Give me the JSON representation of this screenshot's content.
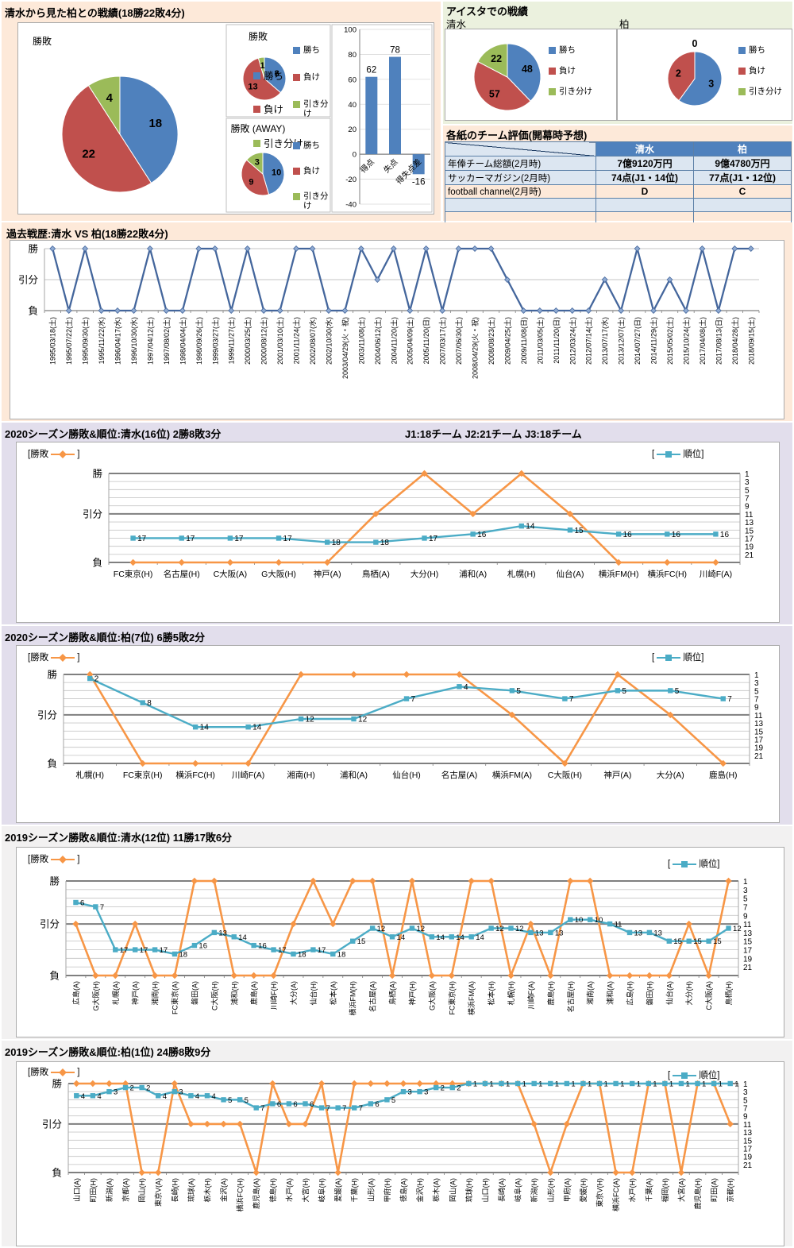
{
  "colors": {
    "win": "#4F81BD",
    "lose": "#C0504D",
    "draw": "#9BBB59",
    "bar": "#4F81BD",
    "history_line": "#44669C",
    "winloss_line": "#F79646",
    "rank_line": "#4BACC6",
    "table_header": "#4F81BD",
    "table_row_alt": "#DCE6F1",
    "bg_peach": "#FDE9D9",
    "bg_green": "#EBF1DE",
    "bg_lavender": "#E2DEEC",
    "bg_gray": "#F2F1F1"
  },
  "pie_legend": [
    "勝ち",
    "負け",
    "引き分け"
  ],
  "axis_labels": {
    "win": "勝",
    "draw": "引分",
    "lose": "負"
  },
  "series_legend": {
    "open": "[",
    "close": "]",
    "win_loss": "勝敗",
    "rank": "順位"
  },
  "rank_axis_ticks": [
    1,
    3,
    5,
    7,
    9,
    11,
    13,
    15,
    17,
    19,
    21
  ],
  "sections": {
    "head_to_head_title": "清水から見た柏との戦績(18勝22敗4分)",
    "aista_title": "アイスタでの戦績",
    "ratings": {
      "title": "各紙のチーム評価(開幕時予想)",
      "columns": [
        "清水",
        "柏"
      ],
      "rows": [
        {
          "label": "年俸チーム総額(2月時)",
          "shimizu": "7億9120万円",
          "kashiwa": "9億4780万円"
        },
        {
          "label": "サッカーマガジン(2月時)",
          "shimizu": "74点(J1・14位)",
          "kashiwa": "77点(J1・12位)"
        },
        {
          "label": "football channel(2月時)",
          "shimizu": "D",
          "kashiwa": "C"
        },
        {
          "label": "",
          "shimizu": "",
          "kashiwa": ""
        },
        {
          "label": "",
          "shimizu": "",
          "kashiwa": ""
        }
      ]
    }
  },
  "chart_data": {
    "overall_pie": {
      "type": "pie",
      "title": "勝敗",
      "labels": [
        "勝ち",
        "負け",
        "引き分け"
      ],
      "values": [
        18,
        22,
        4
      ]
    },
    "home_pie": {
      "type": "pie",
      "title": "勝敗",
      "labels": [
        "勝ち",
        "負け",
        "引き分け"
      ],
      "values": [
        8,
        13,
        1
      ]
    },
    "away_pie": {
      "type": "pie",
      "title": "勝敗 (AWAY)",
      "labels": [
        "勝ち",
        "負け",
        "引き分け"
      ],
      "values": [
        10,
        9,
        3
      ]
    },
    "goals_bar": {
      "type": "bar",
      "categories": [
        "得点",
        "失点",
        "得失点差"
      ],
      "values": [
        62,
        78,
        -16
      ],
      "ylim": [
        -40,
        100
      ],
      "ytick_step": 20
    },
    "aista_shimizu_pie": {
      "type": "pie",
      "title": "清水",
      "labels": [
        "勝ち",
        "負け",
        "引き分け"
      ],
      "values": [
        48,
        57,
        22
      ]
    },
    "aista_kashiwa_pie": {
      "type": "pie",
      "title": "柏",
      "labels": [
        "勝ち",
        "負け",
        "引き分け"
      ],
      "values": [
        3,
        2,
        0
      ]
    },
    "history": {
      "type": "line",
      "title": "過去戦歴:清水 VS 柏(18勝22敗4分)",
      "ytick_labels": [
        "勝",
        "引分",
        "負"
      ],
      "categories": [
        "1995/03/18(土)",
        "1995/07/22(土)",
        "1995/09/30(土)",
        "1995/11/22(水)",
        "1996/04/17(水)",
        "1996/10/30(水)",
        "1997/04/12(土)",
        "1997/08/02(土)",
        "1998/04/04(土)",
        "1998/09/26(土)",
        "1999/03/27(土)",
        "1999/11/27(土)",
        "2000/03/25(土)",
        "2000/08/12(土)",
        "2001/03/10(土)",
        "2001/11/24(土)",
        "2002/08/07(水)",
        "2002/10/30(水)",
        "2003/04/29(火・祝)",
        "2003/11/08(土)",
        "2004/06/12(土)",
        "2004/11/20(土)",
        "2005/04/09(土)",
        "2005/11/20(日)",
        "2007/03/17(土)",
        "2007/06/30(土)",
        "2008/04/29(火・祝)",
        "2008/08/23(土)",
        "2009/04/25(土)",
        "2009/11/08(日)",
        "2011/03/05(土)",
        "2011/11/20(日)",
        "2012/03/24(土)",
        "2012/07/14(土)",
        "2013/07/17(水)",
        "2013/12/07(土)",
        "2014/07/27(日)",
        "2014/11/29(土)",
        "2015/05/02(土)",
        "2015/10/24(土)",
        "2017/04/08(土)",
        "2017/08/13(日)",
        "2018/04/28(土)",
        "2018/09/15(土)"
      ],
      "results": [
        "勝",
        "負",
        "勝",
        "負",
        "負",
        "負",
        "勝",
        "負",
        "負",
        "勝",
        "勝",
        "負",
        "勝",
        "負",
        "負",
        "勝",
        "勝",
        "負",
        "負",
        "勝",
        "引分",
        "勝",
        "負",
        "勝",
        "負",
        "勝",
        "勝",
        "勝",
        "引分",
        "負",
        "負",
        "負",
        "負",
        "負",
        "引分",
        "負",
        "勝",
        "負",
        "引分",
        "負",
        "勝",
        "負",
        "勝",
        "勝"
      ]
    },
    "s2020_shimizu": {
      "type": "line",
      "title": "2020シーズン勝敗&順位:清水(16位) 2勝8敗3分",
      "note": "J1:18チーム  J2:21チーム  J3:18チーム",
      "categories": [
        "FC東京(H)",
        "名古屋(H)",
        "C大阪(A)",
        "G大阪(H)",
        "神戸(A)",
        "鳥栖(A)",
        "大分(H)",
        "浦和(A)",
        "札幌(H)",
        "仙台(A)",
        "横浜FM(H)",
        "横浜FC(H)",
        "川崎F(A)"
      ],
      "win_loss": [
        "負",
        "負",
        "負",
        "負",
        "負",
        "引分",
        "勝",
        "引分",
        "勝",
        "引分",
        "負",
        "負",
        "負"
      ],
      "rank": [
        17,
        17,
        17,
        17,
        18,
        18,
        17,
        16,
        14,
        15,
        16,
        16,
        16
      ]
    },
    "s2020_kashiwa": {
      "type": "line",
      "title": "2020シーズン勝敗&順位:柏(7位) 6勝5敗2分",
      "categories": [
        "札幌(H)",
        "FC東京(H)",
        "横浜FC(H)",
        "川崎F(A)",
        "湘南(H)",
        "浦和(A)",
        "仙台(H)",
        "名古屋(A)",
        "横浜FM(A)",
        "C大阪(H)",
        "神戸(A)",
        "大分(A)",
        "鹿島(H)"
      ],
      "win_loss": [
        "勝",
        "負",
        "負",
        "負",
        "勝",
        "勝",
        "勝",
        "勝",
        "引分",
        "負",
        "勝",
        "引分",
        "負"
      ],
      "rank": [
        2,
        8,
        14,
        14,
        12,
        12,
        7,
        4,
        5,
        7,
        5,
        5,
        7
      ]
    },
    "s2019_shimizu": {
      "type": "line",
      "title": "2019シーズン勝敗&順位:清水(12位) 11勝17敗6分",
      "categories": [
        "広島(A)",
        "G大阪(H)",
        "札幌(A)",
        "神戸(A)",
        "湘南(H)",
        "FC東京(A)",
        "磐田(A)",
        "C大阪(H)",
        "浦和(H)",
        "鹿島(A)",
        "川崎F(H)",
        "大分(A)",
        "仙台(H)",
        "松本(A)",
        "横浜FM(H)",
        "名古屋(A)",
        "鳥栖(A)",
        "神戸(H)",
        "G大阪(A)",
        "FC東京(H)",
        "横浜FM(A)",
        "松本(H)",
        "札幌(H)",
        "川崎F(A)",
        "鹿島(H)",
        "名古屋(H)",
        "湘南(A)",
        "浦和(A)",
        "広島(H)",
        "磐田(H)",
        "仙台(A)",
        "大分(H)",
        "C大阪(A)",
        "鳥栖(H)"
      ],
      "win_loss": [
        "引分",
        "負",
        "負",
        "引分",
        "負",
        "負",
        "勝",
        "勝",
        "負",
        "負",
        "負",
        "引分",
        "勝",
        "引分",
        "勝",
        "勝",
        "負",
        "勝",
        "負",
        "負",
        "勝",
        "勝",
        "負",
        "引分",
        "負",
        "勝",
        "勝",
        "負",
        "負",
        "負",
        "負",
        "引分",
        "負",
        "勝"
      ],
      "rank": [
        6,
        7,
        17,
        17,
        17,
        18,
        16,
        13,
        14,
        16,
        17,
        18,
        17,
        18,
        15,
        12,
        14,
        12,
        14,
        14,
        14,
        12,
        12,
        13,
        13,
        10,
        10,
        11,
        13,
        13,
        15,
        15,
        15,
        12
      ]
    },
    "s2019_kashiwa": {
      "type": "line",
      "title": "2019シーズン勝敗&順位:柏(1位) 24勝8敗9分",
      "categories": [
        "山口(A)",
        "町田(H)",
        "新潟(A)",
        "京都(A)",
        "岡山(H)",
        "東京V(A)",
        "長崎(H)",
        "琉球(A)",
        "栃木(H)",
        "金沢(A)",
        "横浜FC(H)",
        "鹿児島(A)",
        "徳島(H)",
        "水戸(A)",
        "大宮(H)",
        "岐阜(H)",
        "愛媛(A)",
        "千葉(H)",
        "山形(A)",
        "甲府(H)",
        "徳島(A)",
        "金沢(H)",
        "栃木(A)",
        "岡山(A)",
        "琉球(H)",
        "山口(H)",
        "長崎(A)",
        "岐阜(A)",
        "新潟(H)",
        "山形(H)",
        "甲府(A)",
        "愛媛(H)",
        "東京V(H)",
        "横浜FC(A)",
        "水戸(H)",
        "千葉(A)",
        "福岡(H)",
        "大宮(A)",
        "鹿児島(H)",
        "町田(A)",
        "京都(H)"
      ],
      "win_loss": [
        "勝",
        "勝",
        "勝",
        "勝",
        "負",
        "負",
        "勝",
        "引分",
        "引分",
        "引分",
        "引分",
        "負",
        "勝",
        "引分",
        "引分",
        "勝",
        "負",
        "勝",
        "勝",
        "勝",
        "勝",
        "勝",
        "勝",
        "勝",
        "勝",
        "勝",
        "勝",
        "勝",
        "引分",
        "負",
        "引分",
        "勝",
        "勝",
        "負",
        "負",
        "勝",
        "勝",
        "負",
        "勝",
        "勝",
        "引分"
      ],
      "rank": [
        4,
        4,
        3,
        2,
        2,
        4,
        3,
        4,
        4,
        5,
        5,
        7,
        6,
        6,
        6,
        7,
        7,
        7,
        6,
        5,
        3,
        3,
        2,
        2,
        1,
        1,
        1,
        1,
        1,
        1,
        1,
        1,
        1,
        1,
        1,
        1,
        1,
        1,
        1,
        1,
        1
      ]
    }
  }
}
